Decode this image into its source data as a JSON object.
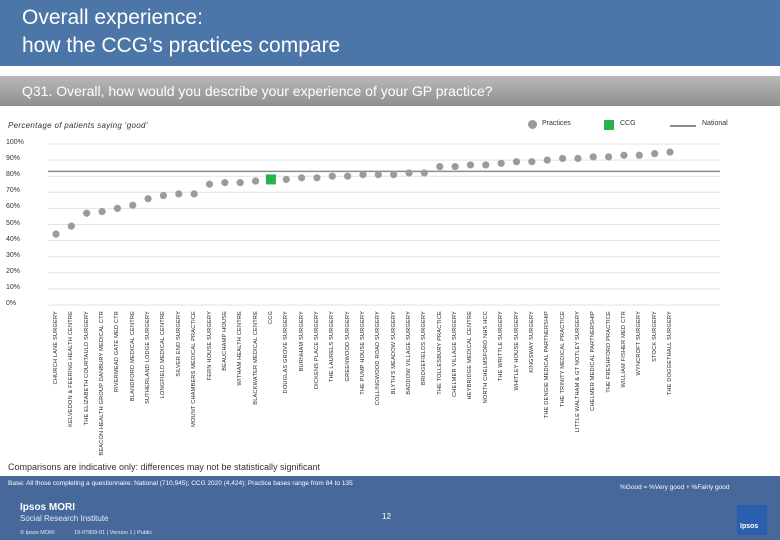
{
  "title": {
    "line1": "Overall experience:",
    "line2": "how the CCG’s practices compare"
  },
  "question": "Q31. Overall, how would you describe your experience of your GP practice?",
  "subtitle": "Percentage of patients saying ‘good’",
  "legend": {
    "practices": "Practices",
    "ccg": "CCG",
    "national": "National"
  },
  "colors": {
    "practice": "#9b9b9b",
    "ccg": "#25b34b",
    "national": "#8c8c8c",
    "band": "#4d76a8"
  },
  "chart_data": {
    "type": "scatter",
    "title": "Percentage of patients saying ‘good’",
    "ylabel": "",
    "ylim": [
      0,
      100
    ],
    "yticks": [
      "0%",
      "10%",
      "20%",
      "30%",
      "40%",
      "50%",
      "60%",
      "70%",
      "80%",
      "90%",
      "100%"
    ],
    "national": 83,
    "categories": [
      "CHURCH LANE SURGERY",
      "KELVEDON & FEERING HEALTH CENTRE",
      "THE ELIZABETH COURTAULD SURGERY",
      "BEACON HEALTH GROUP DANBURY MEDICAL CTR",
      "RIVERMEAD GATE MED CTR",
      "BLANDFORD MEDICAL CENTRE",
      "SUTHERLAND LODGE SURGERY",
      "LONGFIELD MEDICAL CENTRE",
      "SILVER END SURGERY",
      "MOUNT CHAMBERS MEDICAL PRACTICE",
      "FERN HOUSE SURGERY",
      "BEAUCHAMP HOUSE",
      "WITHAM HEALTH CENTRE",
      "BLACKWATER MEDICAL CENTRE",
      "CCG",
      "DOUGLAS GROVE SURGERY",
      "BURNHAM SURGERY",
      "DICKENS PLACE SURGERY",
      "THE LAURELS SURGERY",
      "GREENWOOD SURGERY",
      "THE PUMP HOUSE SURGERY",
      "COLLINGWOOD ROAD SURGERY",
      "BLYTH'S MEADOW SURGERY",
      "BADDOW VILLAGE SURGERY",
      "BRIDGEFIELDS SURGERY",
      "THE TOLLESBURY PRACTICE",
      "CHELMER VILLAGE SURGERY",
      "HEYBRIDGE MEDICAL CENTRE",
      "NORTH CHELMSFORD NHS HCC",
      "THE WRITTLE SURGERY",
      "WHITLEY HOUSE SURGERY",
      "KINGSWAY SURGERY",
      "THE DENGIE MEDICAL PARTNERSHIP",
      "THE TRINITY MEDICAL PRACTICE",
      "LITTLE WALTHAM & GT NOTLEY SURGERY",
      "CHELMER MEDICAL PARTNERSHIP",
      "THE FRESHFORD PRACTICE",
      "WILLIAM FISHER MED CTR",
      "WYNCROFT SURGERY",
      "STOCK SURGERY",
      "THE DOGGETHALL SURGERY"
    ],
    "values": [
      44,
      49,
      57,
      58,
      60,
      62,
      66,
      68,
      69,
      69,
      75,
      76,
      76,
      77,
      78,
      78,
      79,
      79,
      80,
      80,
      81,
      81,
      81,
      82,
      82,
      86,
      86,
      87,
      87,
      88,
      89,
      89,
      90,
      91,
      91,
      92,
      92,
      93,
      93,
      94,
      95
    ],
    "ccg_index": 14
  },
  "note": "Comparisons are indicative only: differences may not be statistically significant",
  "footer": {
    "base": "Base: All those completing a questionnaire: National (710,945); CCG 2020 (4,424); Practice bases range from 84 to 135",
    "good_def": "%Good = %Very good + %Fairly good",
    "page": "12",
    "brand": "Ipsos MORI",
    "brand_sub": "Social Research Institute",
    "copyright": "© Ipsos MORI",
    "ref": "19-07809-01 | Version 1 | Public",
    "logo": "Ipsos"
  }
}
